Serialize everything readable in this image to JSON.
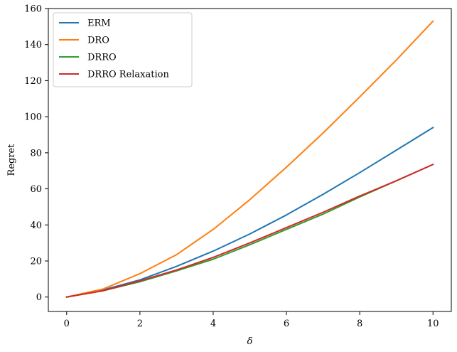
{
  "chart_data": {
    "type": "line",
    "title": "",
    "xlabel": "δ",
    "ylabel": "Regret",
    "xlim": [
      -0.5,
      10.5
    ],
    "ylim": [
      -8,
      160
    ],
    "x_ticks": [
      0,
      2,
      4,
      6,
      8,
      10
    ],
    "y_ticks": [
      0,
      20,
      40,
      60,
      80,
      100,
      120,
      140,
      160
    ],
    "grid": false,
    "legend_position": "top-left",
    "x": [
      0,
      1,
      2,
      3,
      4,
      5,
      6,
      7,
      8,
      9,
      10
    ],
    "series": [
      {
        "name": "ERM",
        "color": "#1f77b4",
        "values": [
          0,
          4,
          9.5,
          17,
          25.5,
          35,
          45.5,
          57,
          69,
          81.5,
          94
        ]
      },
      {
        "name": "DRO",
        "color": "#ff7f0e",
        "values": [
          0,
          4.5,
          13,
          23.5,
          37.5,
          54,
          72,
          91,
          111,
          131.5,
          153
        ]
      },
      {
        "name": "DRRO",
        "color": "#2ca02c",
        "values": [
          0,
          3.5,
          8.5,
          14.5,
          21,
          29,
          37.5,
          46,
          55.5,
          64.5,
          73.5
        ]
      },
      {
        "name": "DRRO Relaxation",
        "color": "#d62728",
        "values": [
          0,
          3.5,
          9,
          15,
          22,
          30,
          38.5,
          47,
          56,
          64.5,
          73.5
        ]
      }
    ]
  }
}
